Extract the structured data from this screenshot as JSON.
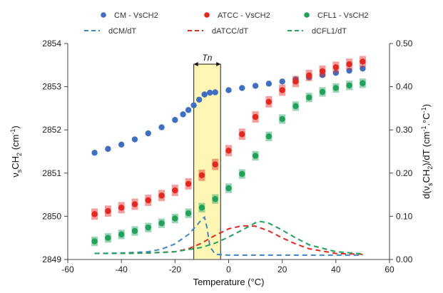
{
  "chart_data": {
    "type": "scatter",
    "xlabel": "Temperature (°C)",
    "ylabel_left": {
      "main": "ν",
      "sub1": "s",
      "mid": "CH",
      "sub2": "2",
      "tail": " (cm",
      "sup": "-1",
      "end": ")"
    },
    "ylabel_right": {
      "a": "d(ν",
      "b": "s",
      "c": "CH",
      "d": "2",
      "e": ")/dT  (cm",
      "f": "-1",
      "g": ".°C",
      "h": "-1",
      "i": ")"
    },
    "xlim": [
      -60,
      60
    ],
    "xticks": [
      -60,
      -40,
      -20,
      0,
      20,
      40,
      60
    ],
    "xtick_labels": [
      "-60",
      "-40",
      "-20",
      "0",
      "20",
      "40",
      "60"
    ],
    "ylim_left": [
      2849,
      2854
    ],
    "yticks_left": [
      2849,
      2850,
      2851,
      2852,
      2853,
      2854
    ],
    "ytick_labels_left": [
      "2849",
      "2850",
      "2851",
      "2852",
      "2853",
      "2854"
    ],
    "ylim_right": [
      0.0,
      0.5
    ],
    "yticks_right": [
      0.0,
      0.1,
      0.2,
      0.3,
      0.4,
      0.5
    ],
    "ytick_labels_right": [
      "0.00",
      "0.10",
      "0.20",
      "0.30",
      "0.40",
      "0.50"
    ],
    "grid": false,
    "legend_position": "top",
    "annotation": {
      "label": "Tn",
      "x_range": [
        -13,
        -3
      ]
    },
    "scatter_series": [
      {
        "name": "CM - VsCH2",
        "color": "#3e6fc4",
        "err": 0.0,
        "x": [
          -50,
          -45,
          -40,
          -35,
          -30,
          -25,
          -20,
          -17,
          -15,
          -13,
          -11,
          -9,
          -7,
          -5,
          0,
          5,
          10,
          15,
          20,
          25,
          30,
          35,
          40,
          45,
          50
        ],
        "y": [
          2851.47,
          2851.56,
          2851.66,
          2851.78,
          2851.92,
          2852.06,
          2852.23,
          2852.36,
          2852.46,
          2852.57,
          2852.7,
          2852.82,
          2852.86,
          2852.87,
          2852.92,
          2852.97,
          2853.02,
          2853.07,
          2853.12,
          2853.17,
          2853.22,
          2853.27,
          2853.32,
          2853.37,
          2853.42
        ]
      },
      {
        "name": "ATCC  - VsCH2",
        "color": "#e8261f",
        "err": 0.13,
        "x": [
          -50,
          -45,
          -40,
          -35,
          -30,
          -25,
          -20,
          -15,
          -10,
          -5,
          0,
          5,
          10,
          15,
          20,
          25,
          30,
          35,
          40,
          45,
          50
        ],
        "y": [
          2850.05,
          2850.12,
          2850.2,
          2850.28,
          2850.37,
          2850.48,
          2850.6,
          2850.75,
          2850.95,
          2851.2,
          2851.52,
          2851.9,
          2852.3,
          2852.65,
          2852.92,
          2853.12,
          2853.26,
          2853.36,
          2853.45,
          2853.52,
          2853.58
        ]
      },
      {
        "name": "CFL1 - VsCH2",
        "color": "#1fa35a",
        "err": 0.11,
        "x": [
          -50,
          -45,
          -40,
          -35,
          -30,
          -25,
          -20,
          -15,
          -10,
          -5,
          0,
          5,
          10,
          15,
          20,
          25,
          30,
          35,
          40,
          45,
          50
        ],
        "y": [
          2849.42,
          2849.5,
          2849.58,
          2849.66,
          2849.74,
          2849.84,
          2849.95,
          2850.07,
          2850.2,
          2850.4,
          2850.65,
          2850.98,
          2851.4,
          2851.85,
          2852.25,
          2852.55,
          2852.75,
          2852.88,
          2852.97,
          2853.03,
          2853.08
        ]
      }
    ],
    "derivative_series": [
      {
        "name": "dCM/dT",
        "color": "#3e86c6",
        "x": [
          -50,
          -40,
          -30,
          -25,
          -20,
          -15,
          -12,
          -10,
          -9,
          -8,
          -7,
          -5,
          0,
          10,
          20,
          30,
          40,
          50
        ],
        "y": [
          0.014,
          0.015,
          0.018,
          0.024,
          0.036,
          0.058,
          0.078,
          0.093,
          0.098,
          0.072,
          0.03,
          0.012,
          0.01,
          0.01,
          0.01,
          0.01,
          0.01,
          0.01
        ]
      },
      {
        "name": "dATCC/dT",
        "color": "#e8261f",
        "x": [
          -50,
          -40,
          -30,
          -20,
          -15,
          -10,
          -5,
          0,
          5,
          10,
          15,
          20,
          25,
          30,
          40,
          50
        ],
        "y": [
          0.014,
          0.014,
          0.015,
          0.018,
          0.025,
          0.038,
          0.056,
          0.071,
          0.078,
          0.077,
          0.066,
          0.05,
          0.036,
          0.025,
          0.014,
          0.012
        ]
      },
      {
        "name": "dCFL1/dT",
        "color": "#1fa35a",
        "x": [
          -50,
          -40,
          -30,
          -20,
          -10,
          -5,
          0,
          5,
          10,
          12,
          15,
          20,
          25,
          30,
          40,
          50
        ],
        "y": [
          0.014,
          0.014,
          0.015,
          0.018,
          0.028,
          0.038,
          0.052,
          0.068,
          0.085,
          0.088,
          0.084,
          0.068,
          0.05,
          0.034,
          0.018,
          0.013
        ]
      }
    ]
  }
}
